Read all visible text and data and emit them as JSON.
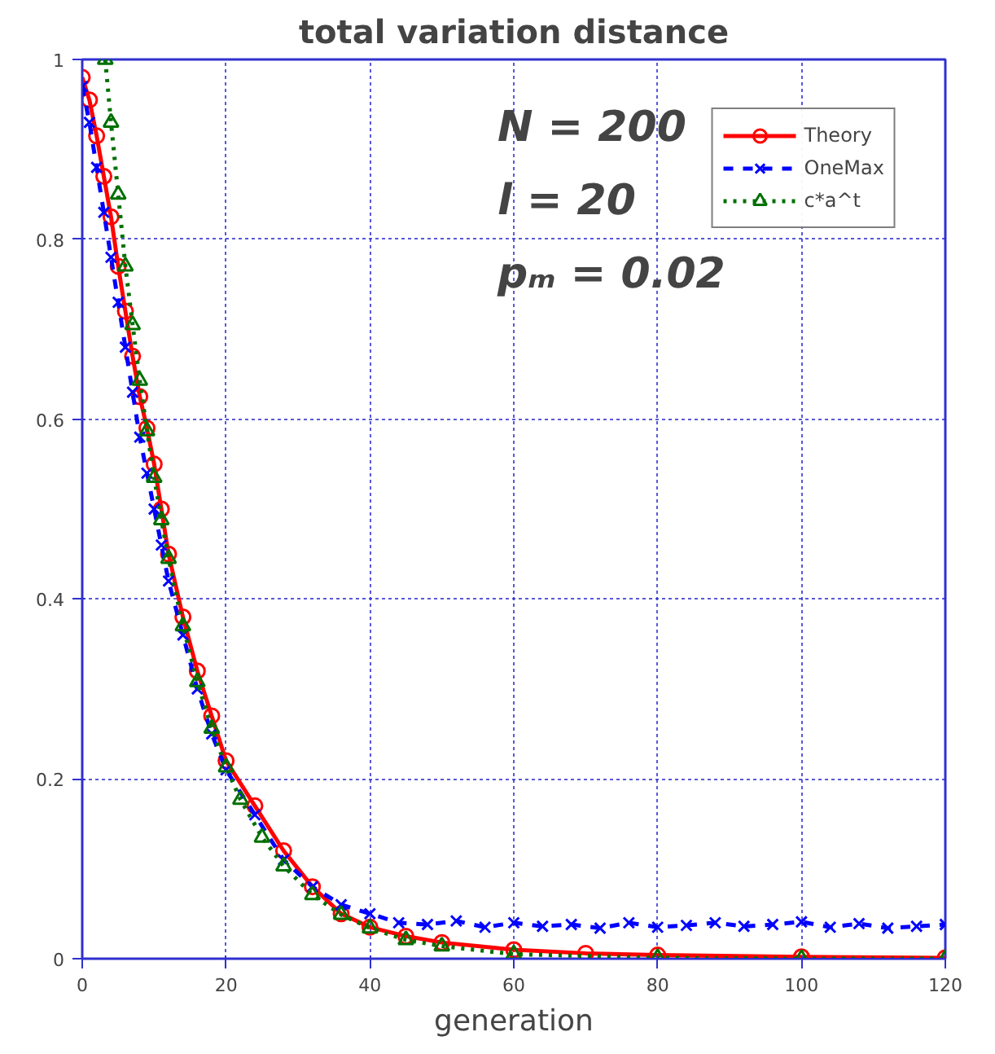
{
  "chart_data": {
    "type": "line",
    "title": "total variation distance",
    "xlabel": "generation",
    "annotations": [
      "N = 200",
      "l = 20",
      "pₘ = 0.02"
    ],
    "xlim": [
      0,
      120
    ],
    "ylim": [
      0,
      1
    ],
    "xticks": [
      0,
      20,
      40,
      60,
      80,
      100,
      120
    ],
    "yticks": [
      0,
      0.2,
      0.4,
      0.6,
      0.8,
      1
    ],
    "grid": true,
    "legend": "top right",
    "series": [
      {
        "name": "Theory",
        "color": "#ff0000",
        "marker": "circle",
        "line_style": "solid",
        "x": [
          0,
          1,
          2,
          3,
          4,
          5,
          6,
          7,
          8,
          9,
          10,
          11,
          12,
          14,
          16,
          18,
          20,
          24,
          28,
          32,
          36,
          40,
          45,
          50,
          60,
          70,
          80,
          100,
          120
        ],
        "values": [
          0.98,
          0.955,
          0.915,
          0.87,
          0.825,
          0.77,
          0.72,
          0.67,
          0.625,
          0.59,
          0.55,
          0.5,
          0.45,
          0.38,
          0.32,
          0.27,
          0.22,
          0.17,
          0.12,
          0.08,
          0.05,
          0.035,
          0.025,
          0.018,
          0.01,
          0.006,
          0.004,
          0.002,
          0.001
        ]
      },
      {
        "name": "OneMax",
        "color": "#0000ff",
        "marker": "cross",
        "line_style": "dashed",
        "x": [
          0,
          1,
          2,
          3,
          4,
          5,
          6,
          7,
          8,
          9,
          10,
          11,
          12,
          14,
          16,
          18,
          20,
          24,
          28,
          32,
          36,
          40,
          44,
          48,
          52,
          56,
          60,
          64,
          68,
          72,
          76,
          80,
          84,
          88,
          92,
          96,
          100,
          104,
          108,
          112,
          116,
          120
        ],
        "values": [
          0.97,
          0.93,
          0.88,
          0.83,
          0.78,
          0.73,
          0.68,
          0.63,
          0.58,
          0.54,
          0.5,
          0.46,
          0.42,
          0.36,
          0.3,
          0.25,
          0.21,
          0.16,
          0.11,
          0.08,
          0.06,
          0.05,
          0.04,
          0.038,
          0.042,
          0.035,
          0.04,
          0.036,
          0.038,
          0.034,
          0.04,
          0.035,
          0.037,
          0.04,
          0.036,
          0.038,
          0.041,
          0.035,
          0.039,
          0.034,
          0.036,
          0.038
        ]
      },
      {
        "name": "c*a^t",
        "color": "#007000",
        "marker": "triangle",
        "line_style": "dotted",
        "x": [
          3.2,
          4,
          5,
          6,
          7,
          8,
          9,
          10,
          11,
          12,
          14,
          16,
          18,
          20,
          22,
          25,
          28,
          32,
          36,
          40,
          45,
          50,
          60,
          80,
          100,
          120
        ],
        "values": [
          1.0,
          0.93,
          0.85,
          0.77,
          0.705,
          0.643,
          0.587,
          0.535,
          0.488,
          0.445,
          0.37,
          0.308,
          0.256,
          0.213,
          0.177,
          0.135,
          0.103,
          0.071,
          0.049,
          0.034,
          0.021,
          0.014,
          0.005,
          0.001,
          0,
          0
        ]
      }
    ]
  }
}
